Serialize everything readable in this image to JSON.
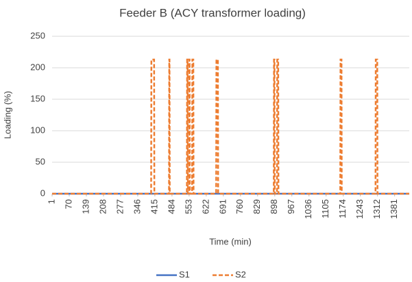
{
  "chart_data": {
    "type": "line",
    "title": "Feeder B (ACY transformer loading)",
    "x_label": "Time (min)",
    "y_label": "Loading (%)",
    "x": [
      1,
      400,
      401,
      412,
      413,
      472,
      473,
      474,
      475,
      544,
      545,
      547,
      548,
      552,
      553,
      555,
      556,
      565,
      566,
      570,
      571,
      662,
      663,
      669,
      670,
      894,
      895,
      897,
      898,
      907,
      908,
      912,
      913,
      1162,
      1163,
      1167,
      1168,
      1304,
      1305,
      1311,
      1312,
      1440
    ],
    "series": [
      {
        "name": "S1",
        "color": "#4472c4",
        "dashed": false,
        "values": [
          0,
          0,
          0,
          0,
          0,
          0,
          0,
          0,
          0,
          0,
          0,
          0,
          0,
          0,
          0,
          0,
          0,
          0,
          0,
          0,
          0,
          0,
          0,
          0,
          0,
          0,
          0,
          0,
          0,
          0,
          0,
          0,
          0,
          0,
          0,
          0,
          0,
          0,
          0,
          0,
          0,
          0
        ]
      },
      {
        "name": "S2",
        "color": "#ed7d31",
        "dashed": true,
        "values": [
          0,
          0,
          213,
          213,
          0,
          0,
          213,
          213,
          0,
          0,
          213,
          213,
          0,
          0,
          213,
          213,
          0,
          0,
          213,
          213,
          0,
          0,
          213,
          213,
          0,
          0,
          213,
          213,
          0,
          0,
          213,
          213,
          0,
          0,
          213,
          213,
          0,
          0,
          213,
          213,
          0,
          0
        ]
      }
    ],
    "xlim": [
      1,
      1440
    ],
    "xticks": [
      1,
      70,
      139,
      208,
      277,
      346,
      415,
      484,
      553,
      622,
      691,
      760,
      829,
      898,
      967,
      1036,
      1105,
      1174,
      1243,
      1312,
      1381
    ],
    "ylim": [
      0,
      250
    ],
    "yticks": [
      0,
      50,
      100,
      150,
      200,
      250
    ],
    "grid": true,
    "legend": "bottom"
  }
}
